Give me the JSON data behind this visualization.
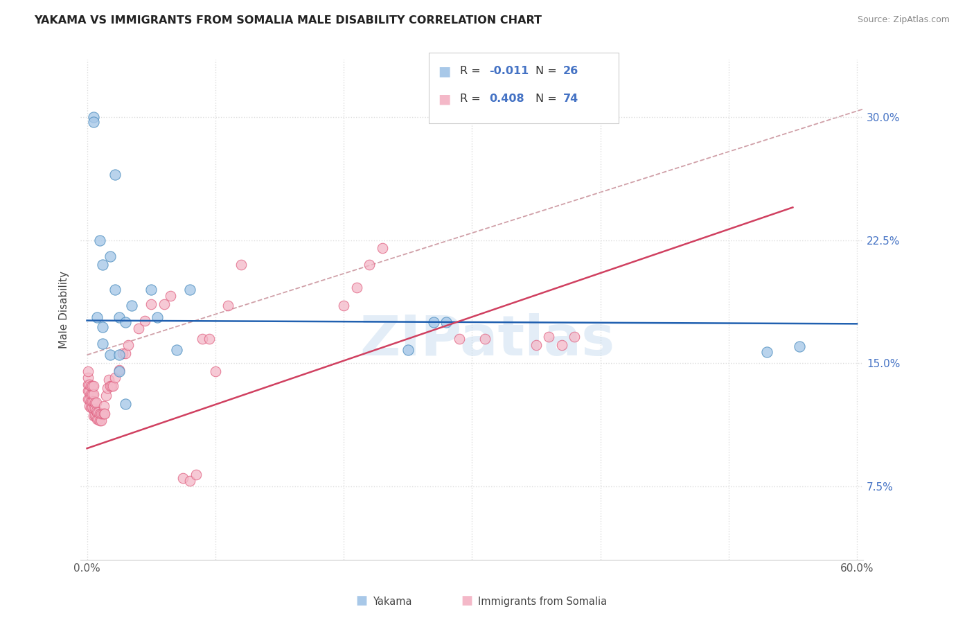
{
  "title": "YAKAMA VS IMMIGRANTS FROM SOMALIA MALE DISABILITY CORRELATION CHART",
  "source": "Source: ZipAtlas.com",
  "ylabel": "Male Disability",
  "ytick_labels": [
    "7.5%",
    "15.0%",
    "22.5%",
    "30.0%"
  ],
  "ytick_values": [
    0.075,
    0.15,
    0.225,
    0.3
  ],
  "xlim": [
    -0.005,
    0.605
  ],
  "ylim": [
    0.03,
    0.335
  ],
  "legend_label1": "Yakama",
  "legend_label2": "Immigrants from Somalia",
  "color_blue": "#a8c8e8",
  "color_pink": "#f4b8c8",
  "color_blue_edge": "#5090c0",
  "color_pink_edge": "#e06080",
  "color_blue_line": "#2060b0",
  "color_pink_line": "#d04060",
  "color_dashed_line": "#d0a0a8",
  "watermark": "ZIPatlas",
  "blue_scatter_x": [
    0.022,
    0.005,
    0.005,
    0.01,
    0.012,
    0.018,
    0.022,
    0.025,
    0.03,
    0.035,
    0.05,
    0.055,
    0.07,
    0.08,
    0.25,
    0.27,
    0.28,
    0.53,
    0.555,
    0.008,
    0.012,
    0.012,
    0.018,
    0.025,
    0.025,
    0.03
  ],
  "blue_scatter_y": [
    0.265,
    0.3,
    0.297,
    0.225,
    0.21,
    0.215,
    0.195,
    0.178,
    0.175,
    0.185,
    0.195,
    0.178,
    0.158,
    0.195,
    0.158,
    0.175,
    0.175,
    0.157,
    0.16,
    0.178,
    0.172,
    0.162,
    0.155,
    0.155,
    0.145,
    0.125
  ],
  "pink_scatter_x": [
    0.001,
    0.001,
    0.001,
    0.001,
    0.001,
    0.002,
    0.002,
    0.002,
    0.002,
    0.003,
    0.003,
    0.003,
    0.003,
    0.004,
    0.004,
    0.004,
    0.004,
    0.005,
    0.005,
    0.005,
    0.005,
    0.005,
    0.006,
    0.006,
    0.006,
    0.007,
    0.007,
    0.007,
    0.008,
    0.008,
    0.009,
    0.009,
    0.01,
    0.01,
    0.011,
    0.011,
    0.012,
    0.013,
    0.013,
    0.014,
    0.015,
    0.016,
    0.017,
    0.018,
    0.019,
    0.02,
    0.022,
    0.025,
    0.028,
    0.03,
    0.032,
    0.04,
    0.045,
    0.05,
    0.06,
    0.065,
    0.075,
    0.08,
    0.085,
    0.09,
    0.095,
    0.1,
    0.11,
    0.12,
    0.2,
    0.21,
    0.22,
    0.23,
    0.29,
    0.31,
    0.35,
    0.36,
    0.37,
    0.38
  ],
  "pink_scatter_y": [
    0.128,
    0.133,
    0.137,
    0.141,
    0.145,
    0.124,
    0.128,
    0.133,
    0.137,
    0.123,
    0.127,
    0.131,
    0.136,
    0.123,
    0.127,
    0.131,
    0.136,
    0.118,
    0.122,
    0.127,
    0.131,
    0.136,
    0.118,
    0.122,
    0.126,
    0.117,
    0.121,
    0.126,
    0.116,
    0.12,
    0.116,
    0.12,
    0.115,
    0.119,
    0.115,
    0.119,
    0.119,
    0.124,
    0.119,
    0.119,
    0.13,
    0.135,
    0.14,
    0.136,
    0.136,
    0.136,
    0.141,
    0.146,
    0.156,
    0.156,
    0.161,
    0.171,
    0.176,
    0.186,
    0.186,
    0.191,
    0.08,
    0.078,
    0.082,
    0.165,
    0.165,
    0.145,
    0.185,
    0.21,
    0.185,
    0.196,
    0.21,
    0.22,
    0.165,
    0.165,
    0.161,
    0.166,
    0.161,
    0.166
  ],
  "blue_trendline_x": [
    0.0,
    0.6
  ],
  "blue_trendline_y": [
    0.176,
    0.174
  ],
  "pink_trendline_x": [
    0.0,
    0.55
  ],
  "pink_trendline_y": [
    0.098,
    0.245
  ],
  "dashed_trendline_x": [
    0.0,
    0.605
  ],
  "dashed_trendline_y": [
    0.155,
    0.305
  ],
  "grid_color": "#dddddd",
  "grid_linestyle": "dotted"
}
